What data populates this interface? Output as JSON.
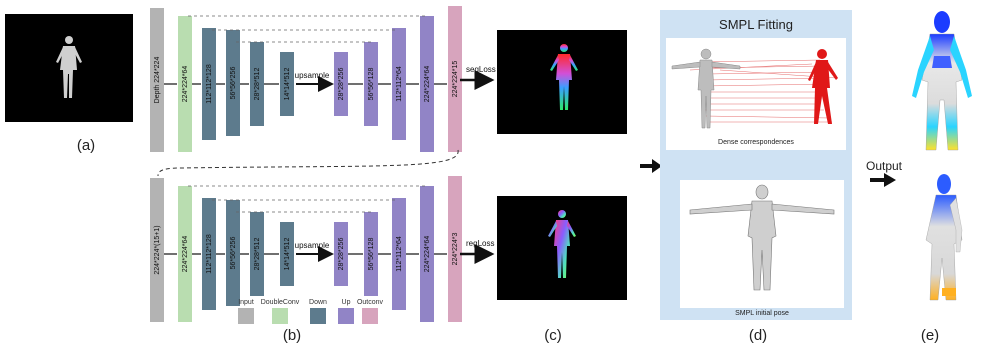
{
  "panel_labels": {
    "a": "(a)",
    "b": "(b)",
    "c": "(c)",
    "d": "(d)",
    "e": "(e)"
  },
  "network_top": {
    "blocks": [
      {
        "type": "input",
        "label": "Depth 224*224"
      },
      {
        "type": "doubleconv",
        "label": "224*224*64"
      },
      {
        "type": "down",
        "label": "112*112*128"
      },
      {
        "type": "down",
        "label": "56*56*256"
      },
      {
        "type": "down",
        "label": "28*28*512"
      },
      {
        "type": "down",
        "label": "14*14*512"
      },
      {
        "type": "up",
        "label": "28*28*256"
      },
      {
        "type": "up",
        "label": "56*56*128"
      },
      {
        "type": "up",
        "label": "112*112*64"
      },
      {
        "type": "up",
        "label": "224*224*64"
      },
      {
        "type": "outconv",
        "label": "224*224*15"
      }
    ],
    "upsample_label": "upsample",
    "loss_label": "segLoss"
  },
  "network_bottom": {
    "blocks": [
      {
        "type": "input",
        "label": "224*224*(15+1)"
      },
      {
        "type": "doubleconv",
        "label": "224*224*64"
      },
      {
        "type": "down",
        "label": "112*112*128"
      },
      {
        "type": "down",
        "label": "56*56*256"
      },
      {
        "type": "down",
        "label": "28*28*512"
      },
      {
        "type": "down",
        "label": "14*14*512"
      },
      {
        "type": "up",
        "label": "28*28*256"
      },
      {
        "type": "up",
        "label": "56*56*128"
      },
      {
        "type": "up",
        "label": "112*112*64"
      },
      {
        "type": "up",
        "label": "224*224*64"
      },
      {
        "type": "outconv",
        "label": "224*224*3"
      }
    ],
    "upsample_label": "upsample",
    "loss_label": "regLoss"
  },
  "legend": [
    {
      "type": "input",
      "label": "Input"
    },
    {
      "type": "doubleconv",
      "label": "DoubleConv"
    },
    {
      "type": "down",
      "label": "Down"
    },
    {
      "type": "up",
      "label": "Up"
    },
    {
      "type": "outconv",
      "label": "Outconv"
    }
  ],
  "fitting": {
    "title": "SMPL Fitting",
    "dense_caption": "Dense correspondences",
    "initial_caption": "SMPL initial pose"
  },
  "output_label": "Output",
  "colors": {
    "input": "#b3b3b3",
    "doubleconv": "#b9ddb0",
    "down": "#5d7b8d",
    "up": "#9184c6",
    "outconv": "#d7a4bd",
    "panel_bg": "#cfe2f3"
  }
}
